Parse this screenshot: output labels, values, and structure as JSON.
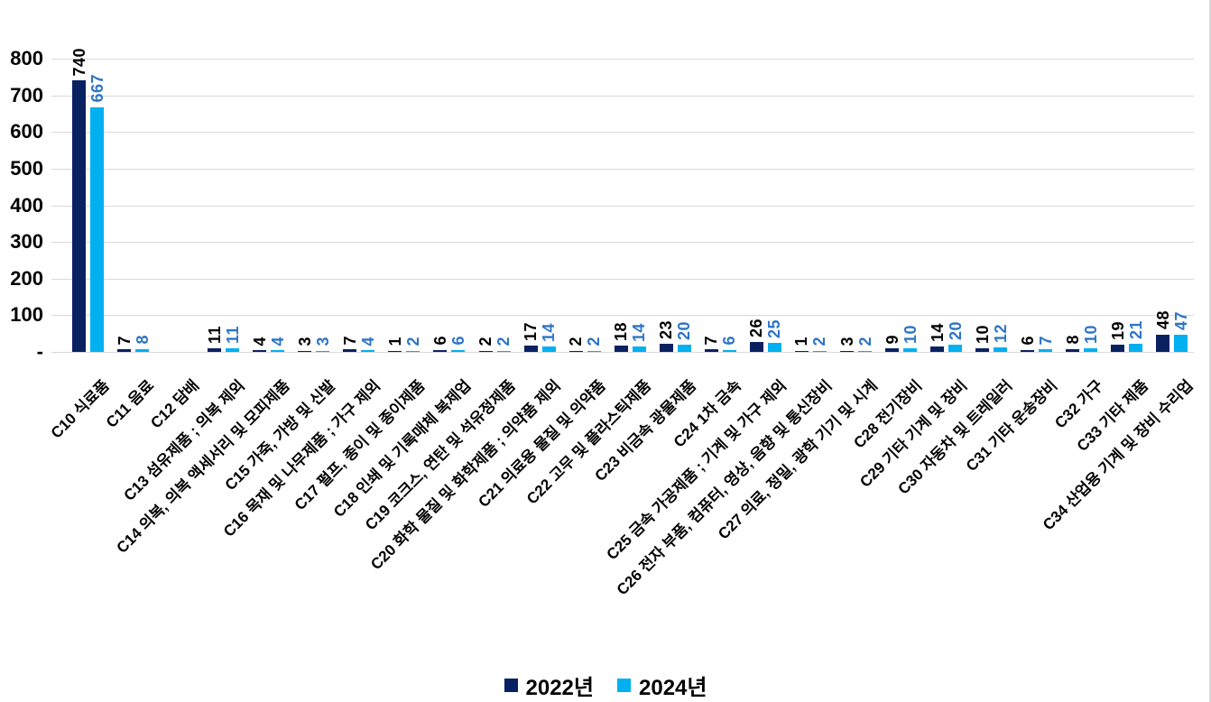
{
  "chart_data": {
    "type": "bar",
    "title": "",
    "xlabel": "",
    "ylabel": "",
    "ylim": [
      0,
      800
    ],
    "ytick_step": 100,
    "ytick_labels": [
      "-",
      "100",
      "200",
      "300",
      "400",
      "500",
      "600",
      "700",
      "800"
    ],
    "grid": true,
    "legend_position": "bottom",
    "categories": [
      "C10 식료품",
      "C11 음료",
      "C12 담배",
      "C13 섬유제품 ; 의복 제외",
      "C14 의복, 의복 액세서리 및 모피제품",
      "C15 가죽, 가방 및 신발",
      "C16 목재 및 나무제품 ; 가구 제외",
      "C17 펄프, 종이 및 종이제품",
      "C18 인쇄 및 기록매체 복제업",
      "C19 코크스, 연탄 및 석유정제품",
      "C20 화학 물질 및 화학제품 ; 의약품 제외",
      "C21 의료용 물질 및 의약품",
      "C22 고무 및 플라스틱제품",
      "C23 비금속 광물제품",
      "C24 1차 금속",
      "C25 금속 가공제품 ; 기계 및 가구 제외",
      "C26 전자 부품, 컴퓨터, 영상, 음향 및 통신장비",
      "C27 의료, 정밀, 광학 기기 및 시계",
      "C28 전기장비",
      "C29 기타 기계 및 장비",
      "C30 자동차 및 트레일러",
      "C31 기타 운송장비",
      "C32 가구",
      "C33 기타 제품",
      "C34 산업용 기계 및 장비 수리업"
    ],
    "series": [
      {
        "name": "2022년",
        "color": "#0a2161",
        "label_color": "#000000",
        "values": [
          740,
          7,
          null,
          11,
          4,
          3,
          7,
          1,
          6,
          2,
          17,
          2,
          18,
          23,
          7,
          26,
          1,
          3,
          9,
          14,
          10,
          6,
          8,
          19,
          48
        ]
      },
      {
        "name": "2024년",
        "color": "#00b0f0",
        "label_color": "#2e75c6",
        "values": [
          667,
          8,
          null,
          11,
          4,
          3,
          4,
          2,
          6,
          2,
          14,
          2,
          14,
          20,
          6,
          25,
          2,
          2,
          10,
          20,
          12,
          7,
          10,
          21,
          47
        ]
      }
    ],
    "colors": {
      "grid": "#d9d9d9",
      "axis_text": "#000000"
    }
  }
}
